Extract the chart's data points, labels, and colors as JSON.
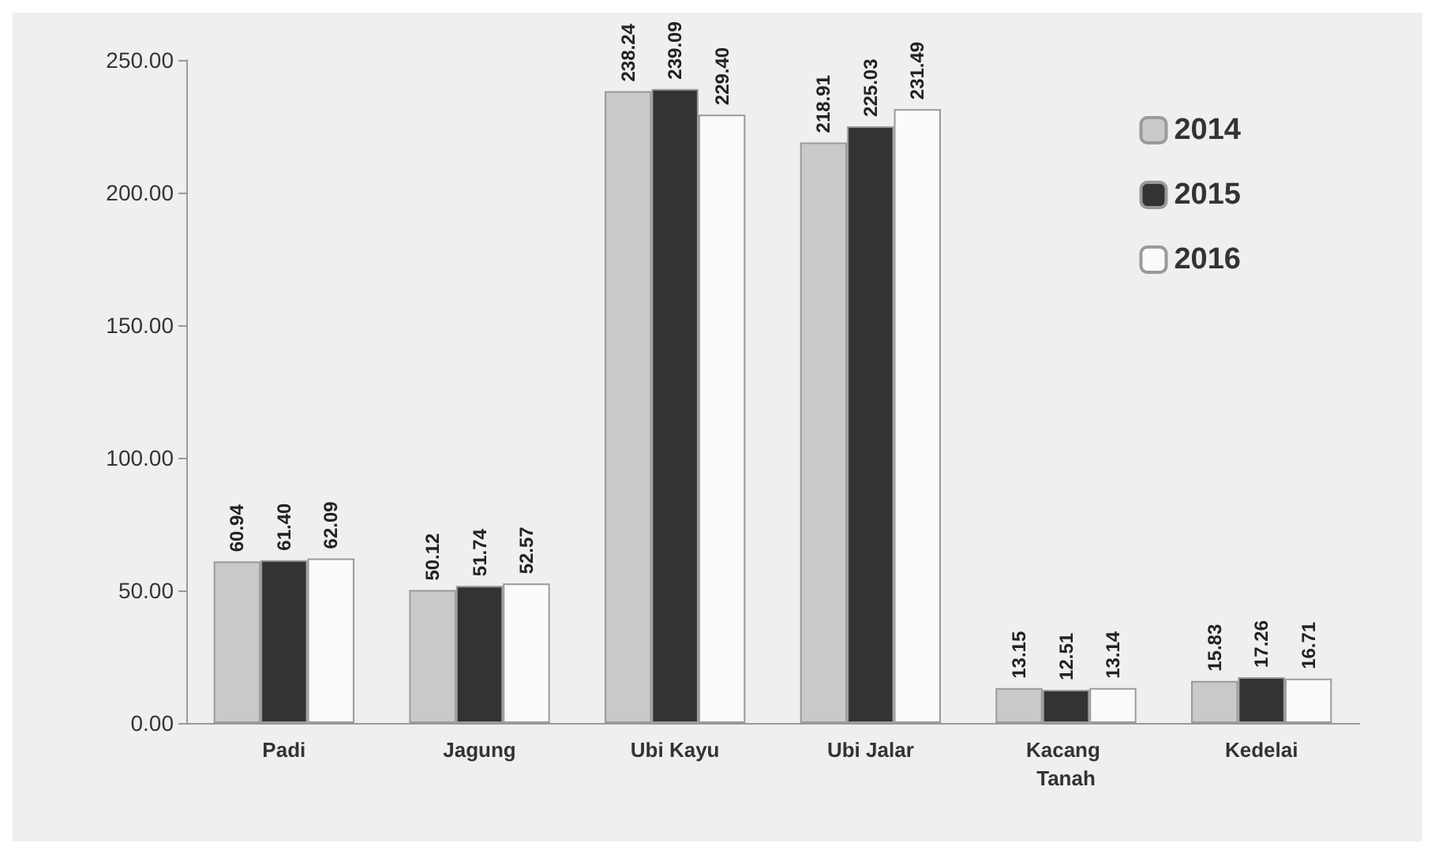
{
  "chart_data": {
    "type": "bar",
    "categories": [
      "Padi",
      "Jagung",
      "Ubi Kayu",
      "Ubi Jalar",
      "Kacang Tanah",
      "Kedelai"
    ],
    "series": [
      {
        "name": "2014",
        "color": "#c9c9c9",
        "values": [
          60.94,
          50.12,
          238.24,
          218.91,
          13.15,
          15.83
        ],
        "value_labels": [
          "60.94",
          "50.12",
          "238.24",
          "218.91",
          "13.15",
          "15.83"
        ]
      },
      {
        "name": "2015",
        "color": "#333333",
        "values": [
          61.4,
          51.74,
          239.09,
          225.03,
          12.51,
          17.26
        ],
        "value_labels": [
          "61.40",
          "51.74",
          "239.09",
          "225.03",
          "12.51",
          "17.26"
        ]
      },
      {
        "name": "2016",
        "color": "#fafafa",
        "values": [
          62.09,
          52.57,
          229.4,
          231.49,
          13.14,
          16.71
        ],
        "value_labels": [
          "62.09",
          "52.57",
          "229.40",
          "231.49",
          "13.14",
          "16.71"
        ]
      }
    ],
    "ylim": [
      0,
      250
    ],
    "yticks": [
      {
        "value": 0,
        "label": "0.00"
      },
      {
        "value": 50,
        "label": "50.00"
      },
      {
        "value": 100,
        "label": "100.00"
      },
      {
        "value": 150,
        "label": "150.00"
      },
      {
        "value": 200,
        "label": "200.00"
      },
      {
        "value": 250,
        "label": "250.00"
      }
    ],
    "grid": false,
    "legend": "top right"
  }
}
